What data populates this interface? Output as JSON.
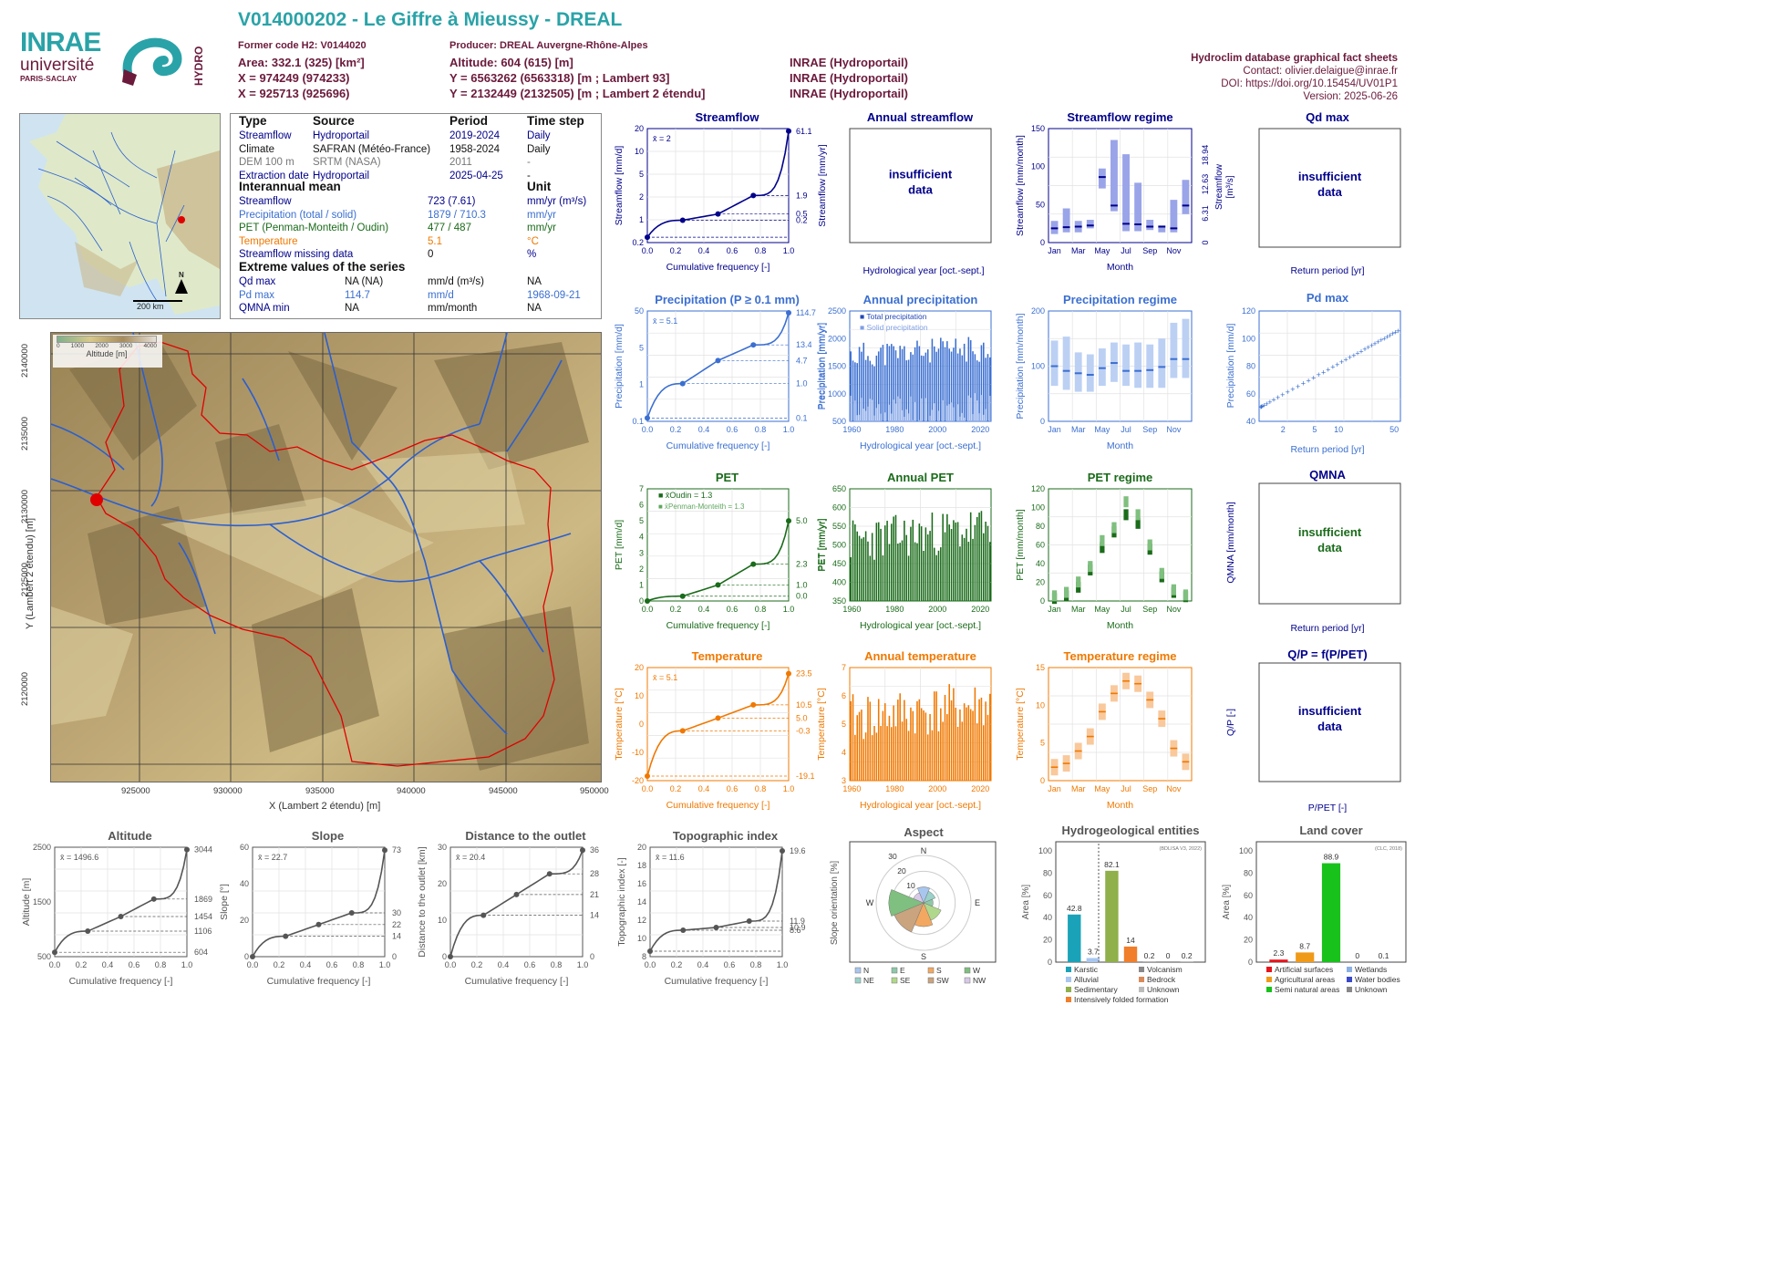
{
  "colors": {
    "title": "#2aa3a8",
    "maroon": "#6b1a3c",
    "navy": "#00008b",
    "strBlue": "#00008b",
    "precBlue": "#3b6fd1",
    "pet": "#1a6b1a",
    "temp": "#f07800",
    "grey": "#555555"
  },
  "header": {
    "title": "V014000202 - Le Giffre à Mieussy - DREAL",
    "col1": [
      "Former code H2: V0144020",
      "Area: 332.1 (325) [km²]",
      "X = 974249 (974233)",
      "X = 925713 (925696)"
    ],
    "col2": [
      "Producer: DREAL Auvergne-Rhône-Alpes",
      "Altitude: 604 (615) [m]",
      "Y = 6563262 (6563318) [m ; Lambert 93]",
      "Y = 2132449 (2132505) [m ; Lambert 2 étendu]"
    ],
    "col3": [
      "INRAE (Hydroportail)",
      "INRAE (Hydroportail)",
      "INRAE (Hydroportail)"
    ],
    "right": [
      "Hydroclim database graphical fact sheets",
      "Contact: olivier.delaigue@inrae.fr",
      "DOI: https://doi.org/10.15454/UV01P1",
      "Version: 2025-06-26"
    ]
  },
  "logos": {
    "inrae": "INRAE",
    "universite": "université",
    "paris": "PARIS-SACLAY",
    "hydro": "HYDRO"
  },
  "map_fr": {
    "scale": "200 km",
    "north": "N"
  },
  "info": {
    "h": [
      "Type",
      "Source",
      "Period",
      "Time step"
    ],
    "rows": [
      [
        "Streamflow",
        "Hydroportail",
        "2019-2024",
        "Daily"
      ],
      [
        "Climate",
        "SAFRAN (Météo-France)",
        "1958-2024",
        "Daily"
      ],
      [
        "DEM 100 m",
        "SRTM (NASA)",
        "2011",
        "-"
      ],
      [
        "Extraction date",
        "Hydroportail",
        "2025-04-25",
        "-"
      ]
    ],
    "inter": "Interannual mean",
    "unit": "Unit",
    "inter_rows": [
      [
        "Streamflow",
        "723 (7.61)",
        "mm/yr (m³/s)"
      ],
      [
        "Precipitation (total / solid)",
        "1879 / 710.3",
        "mm/yr"
      ],
      [
        "PET (Penman-Monteith / Oudin)",
        "477 / 487",
        "mm/yr"
      ],
      [
        "Temperature",
        "5.1",
        "°C"
      ],
      [
        "Streamflow missing data",
        "0",
        "%"
      ]
    ],
    "ext": "Extreme values of the series",
    "ext_rows": [
      [
        "Qd max",
        "NA (NA)",
        "mm/d (m³/s)",
        "NA"
      ],
      [
        "Pd max",
        "114.7",
        "mm/d",
        "1968-09-21"
      ],
      [
        "QMNA min",
        "NA",
        "mm/month",
        "NA"
      ]
    ]
  },
  "catchment": {
    "legend_title": "Altitude [m]",
    "legend_ticks": [
      "0",
      "1000",
      "2000",
      "3000",
      "4000"
    ],
    "xlabel": "X (Lambert 2 étendu) [m]",
    "ylabel": "Y (Lambert 2 étendu) [m]",
    "xticks": [
      "925000",
      "930000",
      "935000",
      "940000",
      "945000",
      "950000"
    ],
    "yticks": [
      "2140000",
      "2135000",
      "2130000",
      "2125000",
      "2120000"
    ]
  },
  "na_text": [
    "insufficient",
    "data"
  ],
  "labels": {
    "cumfreq": "Cumulative frequency [-]",
    "hydroyear": "Hydrological year [oct.-sept.]",
    "month": "Month",
    "return": "Return period [yr]",
    "months": [
      "Jan",
      "Mar",
      "May",
      "Jul",
      "Sep",
      "Nov"
    ]
  },
  "panels": {
    "streamflow": {
      "title": "Streamflow",
      "ylabel": "Streamflow [mm/d]",
      "y2label": "Streamflow [mm/yr]",
      "mean": "x̄ = 2",
      "yticks": [
        "0.2",
        "1",
        "2",
        "5",
        "10",
        "20"
      ],
      "rvals": [
        "61.1",
        "1.9",
        "0.5",
        "0.2"
      ]
    },
    "annual_streamflow": {
      "title": "Annual streamflow"
    },
    "streamflow_regime": {
      "title": "Streamflow regime",
      "ylabel": "Streamflow [mm/month]",
      "y2a": "Streamflow",
      "y2b": "[m³/s]",
      "yticks": [
        "0",
        "50",
        "100",
        "150"
      ],
      "rticks": [
        "0",
        "6.31",
        "12.63",
        "18.94"
      ]
    },
    "qdmax": {
      "title": "Qd max"
    },
    "precipitation": {
      "title": "Precipitation (P ≥ 0.1 mm)",
      "ylabel": "Precipitation [mm/d]",
      "y2label": "Precipitation [mm/yr]",
      "mean": "x̄ = 5.1",
      "yticks": [
        "0.1",
        "1",
        "5",
        "50"
      ],
      "rvals": [
        "114.7",
        "13.4",
        "4.7",
        "1.0",
        "0.1"
      ]
    },
    "annual_precipitation": {
      "title": "Annual precipitation",
      "ylabel": "Precipitation [mm/yr]",
      "legend": [
        "Total precipitation",
        "Solid precipitation"
      ],
      "yticks": [
        "500",
        "1000",
        "1500",
        "2000",
        "2500"
      ],
      "xticks": [
        "1960",
        "1980",
        "2000",
        "2020"
      ]
    },
    "precipitation_regime": {
      "title": "Precipitation regime",
      "ylabel": "Precipitation [mm/month]",
      "yticks": [
        "0",
        "100",
        "200"
      ]
    },
    "pdmax": {
      "title": "Pd max",
      "ylabel": "Precipitation [mm/d]",
      "yticks": [
        "40",
        "60",
        "80",
        "100",
        "120"
      ],
      "xticks": [
        "2",
        "5",
        "10",
        "50"
      ]
    },
    "pet": {
      "title": "PET",
      "ylabel": "PET [mm/d]",
      "y2label": "PET [mm/yr]",
      "legend": [
        "x̄Oudin = 1.3",
        "x̄Penman-Monteith = 1.3"
      ],
      "yticks": [
        "0",
        "1",
        "2",
        "3",
        "4",
        "5",
        "6",
        "7"
      ],
      "rvals": [
        "5.0",
        "2.3",
        "1.0",
        "0.0"
      ]
    },
    "annual_pet": {
      "title": "Annual PET",
      "ylabel": "PET [mm/yr]",
      "yticks": [
        "350",
        "400",
        "450",
        "500",
        "550",
        "600",
        "650"
      ],
      "xticks": [
        "1960",
        "1980",
        "2000",
        "2020"
      ]
    },
    "pet_regime": {
      "title": "PET regime",
      "ylabel": "PET [mm/month]",
      "yticks": [
        "0",
        "20",
        "40",
        "60",
        "80",
        "100",
        "120"
      ]
    },
    "qmna": {
      "title": "QMNA",
      "ylabel": "QMNA [mm/month]"
    },
    "temperature": {
      "title": "Temperature",
      "ylabel": "Temperature [°C]",
      "mean": "x̄ = 5.1",
      "yticks": [
        "-20",
        "-10",
        "0",
        "10",
        "20"
      ],
      "rvals": [
        "23.5",
        "10.5",
        "5.0",
        "-0.3",
        "-19.1"
      ]
    },
    "annual_temperature": {
      "title": "Annual temperature",
      "ylabel": "Temperature [°C]",
      "yticks": [
        "3",
        "4",
        "5",
        "6",
        "7"
      ],
      "xticks": [
        "1960",
        "1980",
        "2000",
        "2020"
      ]
    },
    "temperature_regime": {
      "title": "Temperature regime",
      "ylabel": "Temperature [°C]",
      "yticks": [
        "0",
        "5",
        "10",
        "15"
      ]
    },
    "qp": {
      "title": "Q/P = f(P/PET)",
      "ylabel": "Q/P [-]",
      "xlabel": "P/PET [-]"
    },
    "altitude": {
      "title": "Altitude",
      "ylabel": "Altitude [m]",
      "mean": "x̄ = 1496.6",
      "yticks": [
        "500",
        "1500",
        "2500"
      ],
      "rvals": [
        "3044",
        "1869",
        "1454",
        "1106",
        "604"
      ]
    },
    "slope": {
      "title": "Slope",
      "ylabel": "Slope [°]",
      "mean": "x̄ = 22.7",
      "yticks": [
        "0",
        "20",
        "40",
        "60"
      ],
      "rvals": [
        "73",
        "30",
        "22",
        "14",
        "0"
      ]
    },
    "distance": {
      "title": "Distance to the outlet",
      "ylabel": "Distance to the outlet [km]",
      "mean": "x̄ = 20.4",
      "yticks": [
        "0",
        "10",
        "20",
        "30"
      ],
      "rvals": [
        "36",
        "28",
        "21",
        "14",
        "0"
      ]
    },
    "topo": {
      "title": "Topographic index",
      "ylabel": "Topographic index [-]",
      "mean": "x̄ = 11.6",
      "yticks": [
        "8",
        "10",
        "12",
        "14",
        "16",
        "18",
        "20"
      ],
      "rvals": [
        "19.6",
        "11.9",
        "10.9",
        "8.6"
      ]
    },
    "aspect": {
      "title": "Aspect",
      "ylabel": "Slope orientation [%]",
      "legend": [
        "N",
        "E",
        "S",
        "W",
        "NE",
        "SE",
        "SW",
        "NW"
      ],
      "rings": [
        "10",
        "20",
        "30"
      ]
    },
    "hydrogeo": {
      "title": "Hydrogeological entities",
      "source": "(BDLISA V3, 2022)",
      "ylabel": "Area [%]",
      "legend": [
        "Karstic",
        "Volcanism",
        "Alluvial",
        "Bedrock",
        "Sedimentary",
        "Unknown",
        "Intensively folded formation"
      ],
      "yticks": [
        "0",
        "20",
        "40",
        "60",
        "80",
        "100"
      ]
    },
    "landcover": {
      "title": "Land cover",
      "source": "(CLC, 2018)",
      "ylabel": "Area [%]",
      "legend": [
        "Artificial surfaces",
        "Wetlands",
        "Agricultural areas",
        "Water bodies",
        "Semi natural areas",
        "Unknown"
      ],
      "yticks": [
        "0",
        "20",
        "40",
        "60",
        "80",
        "100"
      ]
    }
  },
  "chart_data": [
    {
      "id": "streamflow_fdc",
      "type": "line",
      "x": [
        0,
        0.25,
        0.5,
        0.75,
        1
      ],
      "y": [
        0.2,
        0.5,
        0.7,
        1.9,
        61.1
      ],
      "yscale": "log"
    },
    {
      "id": "streamflow_regime",
      "type": "bar",
      "categories": [
        "Jan",
        "Feb",
        "Mar",
        "Apr",
        "May",
        "Jun",
        "Jul",
        "Aug",
        "Sep",
        "Oct",
        "Nov",
        "Dec"
      ],
      "median": [
        25,
        27,
        28,
        30,
        115,
        65,
        33,
        32,
        28,
        28,
        25,
        65
      ],
      "q_low": [
        15,
        18,
        18,
        25,
        95,
        55,
        20,
        20,
        22,
        18,
        18,
        50
      ],
      "q_high": [
        38,
        60,
        38,
        40,
        130,
        180,
        155,
        105,
        40,
        30,
        75,
        110
      ],
      "ylim": [
        0,
        200
      ]
    },
    {
      "id": "precipitation_fdc",
      "type": "line",
      "x": [
        0,
        0.25,
        0.5,
        0.75,
        1
      ],
      "y": [
        0.1,
        1.0,
        4.7,
        13.4,
        114.7
      ],
      "yscale": "log"
    },
    {
      "id": "annual_precipitation",
      "type": "bar",
      "x": [
        1959,
        2024
      ],
      "total_range": [
        1300,
        2300
      ],
      "solid_range": [
        400,
        1100
      ],
      "ylim": [
        500,
        2800
      ]
    },
    {
      "id": "precipitation_regime",
      "type": "bar",
      "categories": [
        "Jan",
        "Feb",
        "Mar",
        "Apr",
        "May",
        "Jun",
        "Jul",
        "Aug",
        "Sep",
        "Oct",
        "Nov",
        "Dec"
      ],
      "median": [
        140,
        128,
        122,
        118,
        135,
        148,
        128,
        128,
        130,
        138,
        158,
        158
      ],
      "q_low": [
        90,
        80,
        75,
        75,
        90,
        100,
        90,
        85,
        85,
        85,
        110,
        110
      ],
      "q_high": [
        205,
        215,
        175,
        170,
        185,
        200,
        195,
        200,
        195,
        210,
        250,
        260
      ],
      "ylim": [
        0,
        280
      ]
    },
    {
      "id": "pdmax",
      "type": "scatter",
      "x": [
        1.05,
        2,
        3,
        5,
        10,
        20,
        50
      ],
      "y": [
        42,
        50,
        55,
        60,
        68,
        85,
        115
      ]
    },
    {
      "id": "pet_fdc",
      "type": "line",
      "x": [
        0,
        0.25,
        0.5,
        0.75,
        1
      ],
      "y": [
        0.0,
        0.3,
        1.0,
        2.3,
        5.0
      ]
    },
    {
      "id": "annual_pet",
      "type": "bar",
      "x": [
        1959,
        2024
      ],
      "range": [
        380,
        630
      ],
      "ylim": [
        340,
        680
      ]
    },
    {
      "id": "pet_regime",
      "type": "bar",
      "categories": [
        "Jan",
        "Feb",
        "Mar",
        "Apr",
        "May",
        "Jun",
        "Jul",
        "Aug",
        "Sep",
        "Oct",
        "Nov",
        "Dec"
      ],
      "oudin": [
        3,
        6,
        16,
        36,
        62,
        80,
        100,
        90,
        60,
        28,
        10,
        5
      ],
      "pm": [
        6,
        10,
        22,
        40,
        70,
        85,
        115,
        100,
        65,
        32,
        13,
        7
      ],
      "ylim": [
        0,
        130
      ]
    },
    {
      "id": "temperature_fdc",
      "type": "line",
      "x": [
        0,
        0.25,
        0.5,
        0.75,
        1
      ],
      "y": [
        -19.1,
        -0.3,
        5.0,
        10.5,
        23.5
      ]
    },
    {
      "id": "annual_temperature",
      "type": "bar",
      "x": [
        1959,
        2024
      ],
      "range": [
        3.2,
        6.9
      ],
      "ylim": [
        2.8,
        7.4
      ]
    },
    {
      "id": "temperature_regime",
      "type": "bar",
      "categories": [
        "Jan",
        "Feb",
        "Mar",
        "Apr",
        "May",
        "Jun",
        "Jul",
        "Aug",
        "Sep",
        "Oct",
        "Nov",
        "Dec"
      ],
      "median": [
        -2.5,
        -1.8,
        0.5,
        3.2,
        7.8,
        11.2,
        13.5,
        13.0,
        10.0,
        6.5,
        1.0,
        -1.5
      ],
      "ylim": [
        -5,
        16
      ]
    },
    {
      "id": "altitude_cdf",
      "type": "line",
      "x": [
        0,
        0.25,
        0.5,
        0.75,
        1
      ],
      "y": [
        604,
        1106,
        1454,
        1869,
        3044
      ]
    },
    {
      "id": "slope_cdf",
      "type": "line",
      "x": [
        0,
        0.25,
        0.5,
        0.75,
        1
      ],
      "y": [
        0,
        14,
        22,
        30,
        73
      ]
    },
    {
      "id": "distance_cdf",
      "type": "line",
      "x": [
        0,
        0.25,
        0.5,
        0.75,
        1
      ],
      "y": [
        0,
        14,
        21,
        28,
        36
      ]
    },
    {
      "id": "topo_cdf",
      "type": "line",
      "x": [
        0,
        0.25,
        0.5,
        0.75,
        1
      ],
      "y": [
        8.6,
        10.9,
        11.2,
        11.9,
        19.6
      ]
    },
    {
      "id": "aspect",
      "type": "pie",
      "categories": [
        "N",
        "NE",
        "E",
        "SE",
        "S",
        "SW",
        "W",
        "NW"
      ],
      "values": [
        10,
        8,
        6,
        12,
        15,
        20,
        22,
        7
      ]
    },
    {
      "id": "hydrogeo",
      "type": "bar",
      "categories": [
        "Karstic",
        "Alluvial",
        "Sedimentary",
        "Intensively folded formation",
        "Volcanism",
        "Bedrock",
        "Unknown"
      ],
      "values": [
        42.8,
        3.7,
        82.1,
        14,
        0.2,
        0,
        0.2
      ],
      "ylim": [
        0,
        100
      ]
    },
    {
      "id": "landcover",
      "type": "bar",
      "categories": [
        "Artificial surfaces",
        "Agricultural areas",
        "Semi natural areas",
        "Wetlands",
        "Water bodies"
      ],
      "values": [
        2.3,
        8.7,
        88.9,
        0,
        0.1
      ],
      "ylim": [
        0,
        100
      ]
    }
  ]
}
